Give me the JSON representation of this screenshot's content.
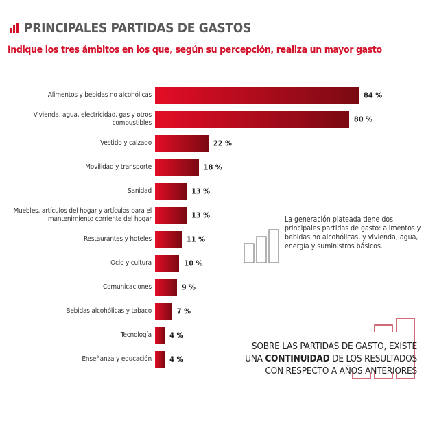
{
  "header": {
    "title": "PRINCIPALES PARTIDAS DE GASTOS",
    "subtitle": "Indique los tres ámbitos en los que, según su percepción, realiza un mayor gasto"
  },
  "chart_data": {
    "type": "bar",
    "orientation": "horizontal",
    "categories": [
      "Alimentos y bebidas no alcohólicas",
      "Vivienda, agua, electricidad, gas y otros combustibles",
      "Vestido y calzado",
      "Movilidad y transporte",
      "Sanidad",
      "Muebles, artículos del hogar y artículos para el mantenimiento corriente del hogar",
      "Restaurantes y hoteles",
      "Ocio y cultura",
      "Comunicaciones",
      "Bebidas alcohólicas y tabaco",
      "Tecnología",
      "Enseñanza y educación"
    ],
    "values": [
      84,
      80,
      22,
      18,
      13,
      13,
      11,
      10,
      9,
      7,
      4,
      4
    ],
    "value_labels": [
      "84 %",
      "80 %",
      "22 %",
      "18 %",
      "13 %",
      "13 %",
      "11 %",
      "10 %",
      "9 %",
      "7 %",
      "4 %",
      "4 %"
    ],
    "colors": {
      "bar_start": "#e30d25",
      "bar_end": "#7a0a12"
    },
    "grid": false
  },
  "note": "La generación plateada tiene dos principales partidas de gasto: alimentos y bebidas no alcohólicas, y vivienda, agua, energía y suministros básicos.",
  "conclusion": {
    "line1": "SOBRE LAS PARTIDAS DE GASTO, EXISTE",
    "line2_pre": "UNA ",
    "line2_bold": "CONTINUIDAD",
    "line2_post": " DE LOS RESULTADOS",
    "line3": "CON RESPECTO A AÑOS ANTERIORES"
  },
  "colors": {
    "accent": "#d3112a",
    "title": "#5a5a5a"
  }
}
